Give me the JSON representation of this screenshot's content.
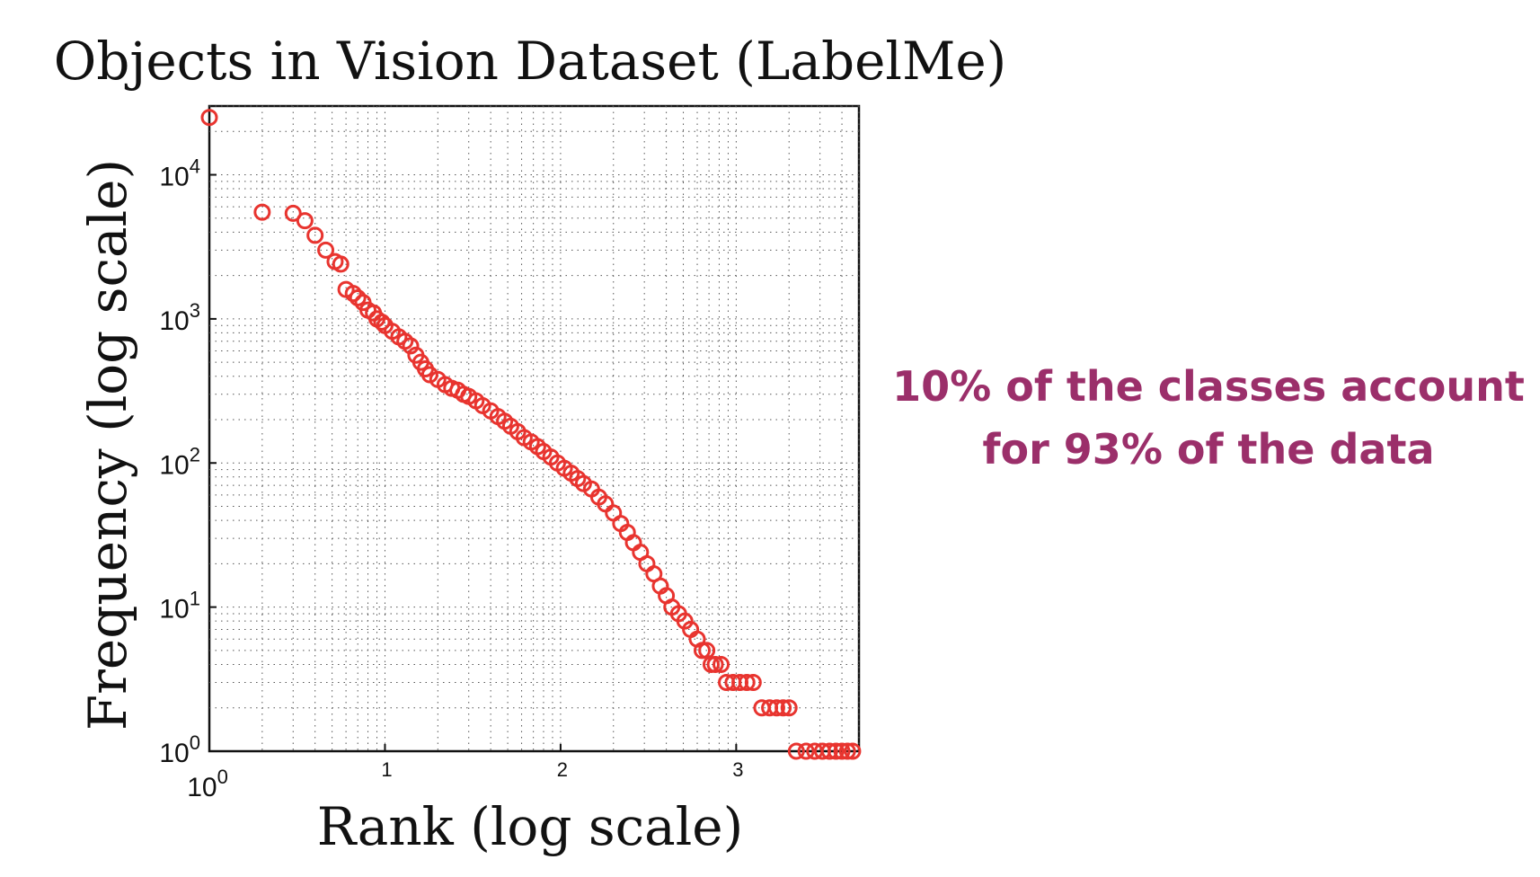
{
  "chart_data": {
    "type": "scatter",
    "title": "Objects in Vision Dataset (LabelMe)",
    "xlabel": "Rank (log scale)",
    "ylabel": "Frequency (log scale)",
    "x_scale": "log",
    "y_scale": "log",
    "xlim": [
      1,
      5000
    ],
    "ylim": [
      1,
      30000
    ],
    "x_tick_labels": [
      {
        "base": "10",
        "exp": "0"
      },
      {
        "base": "",
        "exp": "1"
      },
      {
        "base": "",
        "exp": "2"
      },
      {
        "base": "",
        "exp": "3"
      }
    ],
    "y_tick_labels": [
      {
        "base": "10",
        "exp": "0"
      },
      {
        "base": "10",
        "exp": "1"
      },
      {
        "base": "10",
        "exp": "2"
      },
      {
        "base": "10",
        "exp": "3"
      },
      {
        "base": "10",
        "exp": "4"
      }
    ],
    "grid": true,
    "marker": "open-circle",
    "series": [
      {
        "color": "#e8342f",
        "points": [
          [
            1,
            25000
          ],
          [
            2,
            5500
          ],
          [
            3,
            5400
          ],
          [
            3.5,
            4800
          ],
          [
            4,
            3800
          ],
          [
            4.6,
            3000
          ],
          [
            5.2,
            2500
          ],
          [
            5.6,
            2400
          ],
          [
            6,
            1600
          ],
          [
            6.6,
            1500
          ],
          [
            7,
            1400
          ],
          [
            7.5,
            1300
          ],
          [
            8,
            1150
          ],
          [
            8.6,
            1100
          ],
          [
            9,
            1000
          ],
          [
            9.6,
            950
          ],
          [
            10,
            900
          ],
          [
            11,
            820
          ],
          [
            12,
            750
          ],
          [
            13,
            700
          ],
          [
            14,
            650
          ],
          [
            15,
            560
          ],
          [
            16,
            500
          ],
          [
            17,
            450
          ],
          [
            18,
            410
          ],
          [
            20,
            380
          ],
          [
            22,
            350
          ],
          [
            24,
            330
          ],
          [
            26,
            320
          ],
          [
            28,
            300
          ],
          [
            30,
            290
          ],
          [
            33,
            270
          ],
          [
            36,
            250
          ],
          [
            40,
            230
          ],
          [
            44,
            210
          ],
          [
            48,
            195
          ],
          [
            52,
            180
          ],
          [
            57,
            165
          ],
          [
            62,
            150
          ],
          [
            68,
            140
          ],
          [
            74,
            130
          ],
          [
            80,
            120
          ],
          [
            88,
            110
          ],
          [
            96,
            100
          ],
          [
            105,
            92
          ],
          [
            115,
            85
          ],
          [
            125,
            78
          ],
          [
            135,
            72
          ],
          [
            150,
            66
          ],
          [
            165,
            58
          ],
          [
            180,
            52
          ],
          [
            200,
            45
          ],
          [
            220,
            38
          ],
          [
            240,
            33
          ],
          [
            260,
            28
          ],
          [
            285,
            24
          ],
          [
            310,
            20
          ],
          [
            340,
            17
          ],
          [
            370,
            14
          ],
          [
            400,
            12
          ],
          [
            430,
            10
          ],
          [
            470,
            9
          ],
          [
            510,
            8
          ],
          [
            550,
            7
          ],
          [
            600,
            6
          ],
          [
            640,
            5
          ],
          [
            680,
            5
          ],
          [
            720,
            4
          ],
          [
            760,
            4
          ],
          [
            820,
            4
          ],
          [
            880,
            3
          ],
          [
            960,
            3
          ],
          [
            1050,
            3
          ],
          [
            1150,
            3
          ],
          [
            1250,
            3
          ],
          [
            1400,
            2
          ],
          [
            1550,
            2
          ],
          [
            1700,
            2
          ],
          [
            1850,
            2
          ],
          [
            2000,
            2
          ],
          [
            2200,
            1
          ],
          [
            2500,
            1
          ],
          [
            2800,
            1
          ],
          [
            3100,
            1
          ],
          [
            3400,
            1
          ],
          [
            3700,
            1
          ],
          [
            4000,
            1
          ],
          [
            4300,
            1
          ],
          [
            4600,
            1
          ]
        ]
      }
    ]
  },
  "callout": {
    "line1": "10% of the classes account",
    "line2": "for 93% of the data",
    "color": "#9b2f6a"
  }
}
